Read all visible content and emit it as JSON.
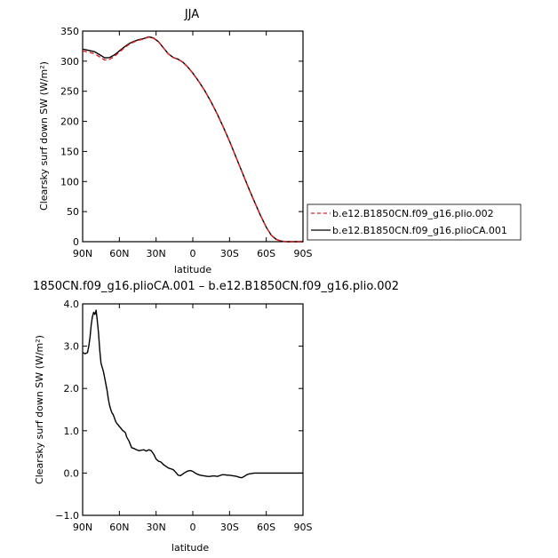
{
  "chart_data": [
    {
      "type": "line",
      "title": "JJA",
      "xlabel": "latitude",
      "ylabel": "Clearsky surf down SW (W/m²)",
      "xlim": [
        90,
        -90
      ],
      "ylim": [
        0,
        350
      ],
      "x_ticks": [
        "90N",
        "60N",
        "30N",
        "0",
        "30S",
        "60S",
        "90S"
      ],
      "x_tick_values": [
        90,
        60,
        30,
        0,
        -30,
        -60,
        -90
      ],
      "y_ticks": [
        "0",
        "50",
        "100",
        "150",
        "200",
        "250",
        "300",
        "350"
      ],
      "y_tick_values": [
        0,
        50,
        100,
        150,
        200,
        250,
        300,
        350
      ],
      "legend_position": "right",
      "series": [
        {
          "name": "b.e12.B1850CN.f09_g16.plio.002",
          "color": "#e02020",
          "dash": "dashed",
          "x": [
            90,
            85,
            80,
            76,
            72,
            68,
            64,
            60,
            56,
            52,
            48,
            44,
            40,
            36,
            32,
            28,
            24,
            20,
            16,
            12,
            8,
            4,
            0,
            -5,
            -10,
            -15,
            -20,
            -25,
            -30,
            -35,
            -40,
            -45,
            -50,
            -55,
            -60,
            -64,
            -68,
            -72,
            -76,
            -80,
            -84,
            -90
          ],
          "y": [
            317,
            315,
            312,
            307,
            302,
            303,
            308,
            315,
            322,
            328,
            332,
            335,
            337,
            340,
            338,
            332,
            322,
            312,
            306,
            303,
            298,
            290,
            280,
            266,
            250,
            232,
            212,
            190,
            167,
            142,
            117,
            92,
            68,
            45,
            24,
            11,
            4,
            1,
            0,
            0,
            0,
            0
          ]
        },
        {
          "name": "b.e12.B1850CN.f09_g16.plioCA.001",
          "color": "#000000",
          "dash": "solid",
          "x": [
            90,
            85,
            80,
            76,
            72,
            68,
            64,
            60,
            56,
            52,
            48,
            44,
            40,
            36,
            32,
            28,
            24,
            20,
            16,
            12,
            8,
            4,
            0,
            -5,
            -10,
            -15,
            -20,
            -25,
            -30,
            -35,
            -40,
            -45,
            -50,
            -55,
            -60,
            -64,
            -68,
            -72,
            -76,
            -80,
            -84,
            -90
          ],
          "y": [
            320,
            318,
            315.5,
            310.7,
            305.6,
            306,
            310.5,
            317,
            323.5,
            329.3,
            333,
            335.9,
            337.6,
            340.5,
            338.5,
            332.4,
            322.3,
            312.2,
            306.2,
            303.3,
            298.1,
            290.1,
            280.1,
            266,
            250.1,
            232,
            212,
            190,
            167,
            142,
            117,
            92,
            68,
            45,
            24,
            11,
            4,
            1,
            0,
            0,
            0,
            0
          ]
        }
      ]
    },
    {
      "type": "line",
      "title": "1850CN.f09_g16.plioCA.001 – b.e12.B1850CN.f09_g16.plio.002",
      "xlabel": "latitude",
      "ylabel": "Clearsky surf down SW (W/m²)",
      "xlim": [
        90,
        -90
      ],
      "ylim": [
        -1.0,
        4.0
      ],
      "x_ticks": [
        "90N",
        "60N",
        "30N",
        "0",
        "30S",
        "60S",
        "90S"
      ],
      "x_tick_values": [
        90,
        60,
        30,
        0,
        -30,
        -60,
        -90
      ],
      "y_ticks": [
        "−1.0",
        "0.0",
        "1.0",
        "2.0",
        "3.0",
        "4.0"
      ],
      "y_tick_values": [
        -1,
        0,
        1,
        2,
        3,
        4
      ],
      "series": [
        {
          "color": "#000000",
          "dash": "solid",
          "x": [
            90,
            88,
            86,
            85,
            84,
            83,
            82,
            81,
            80,
            79,
            78,
            77,
            76,
            75,
            74,
            73,
            72,
            71,
            70,
            69,
            68,
            67,
            66,
            65,
            64,
            63,
            62,
            61,
            60,
            59,
            58,
            57,
            56,
            55,
            54,
            52,
            50,
            48,
            46,
            44,
            42,
            40,
            38,
            36,
            34,
            32,
            30,
            28,
            26,
            24,
            22,
            20,
            18,
            16,
            14,
            12,
            10,
            8,
            6,
            4,
            2,
            0,
            -2,
            -4,
            -6,
            -8,
            -10,
            -12,
            -14,
            -16,
            -18,
            -20,
            -22,
            -24,
            -26,
            -28,
            -30,
            -32,
            -34,
            -36,
            -38,
            -40,
            -42,
            -44,
            -46,
            -48,
            -50,
            -52,
            -54,
            -56,
            -58,
            -60,
            -62,
            -64,
            -66,
            -70,
            -75,
            -80,
            -85,
            -90
          ],
          "y": [
            2.85,
            2.82,
            2.85,
            3.0,
            3.2,
            3.5,
            3.7,
            3.8,
            3.75,
            3.85,
            3.6,
            3.3,
            2.9,
            2.6,
            2.5,
            2.4,
            2.25,
            2.1,
            1.95,
            1.75,
            1.6,
            1.5,
            1.42,
            1.38,
            1.3,
            1.22,
            1.17,
            1.14,
            1.1,
            1.07,
            1.03,
            1.0,
            0.98,
            0.95,
            0.85,
            0.75,
            0.6,
            0.58,
            0.55,
            0.53,
            0.54,
            0.55,
            0.52,
            0.55,
            0.53,
            0.45,
            0.33,
            0.28,
            0.26,
            0.2,
            0.16,
            0.12,
            0.1,
            0.08,
            0.02,
            -0.05,
            -0.06,
            -0.02,
            0.02,
            0.05,
            0.06,
            0.04,
            0.0,
            -0.03,
            -0.05,
            -0.06,
            -0.07,
            -0.08,
            -0.08,
            -0.07,
            -0.07,
            -0.08,
            -0.06,
            -0.04,
            -0.04,
            -0.05,
            -0.05,
            -0.06,
            -0.07,
            -0.08,
            -0.1,
            -0.11,
            -0.08,
            -0.04,
            -0.02,
            -0.01,
            0.0,
            0.0,
            0.0,
            0.0,
            0.0,
            0.0,
            0.0,
            0.0,
            0.0,
            0.0,
            0.0,
            0.0,
            0.0,
            0.0
          ]
        }
      ]
    }
  ]
}
